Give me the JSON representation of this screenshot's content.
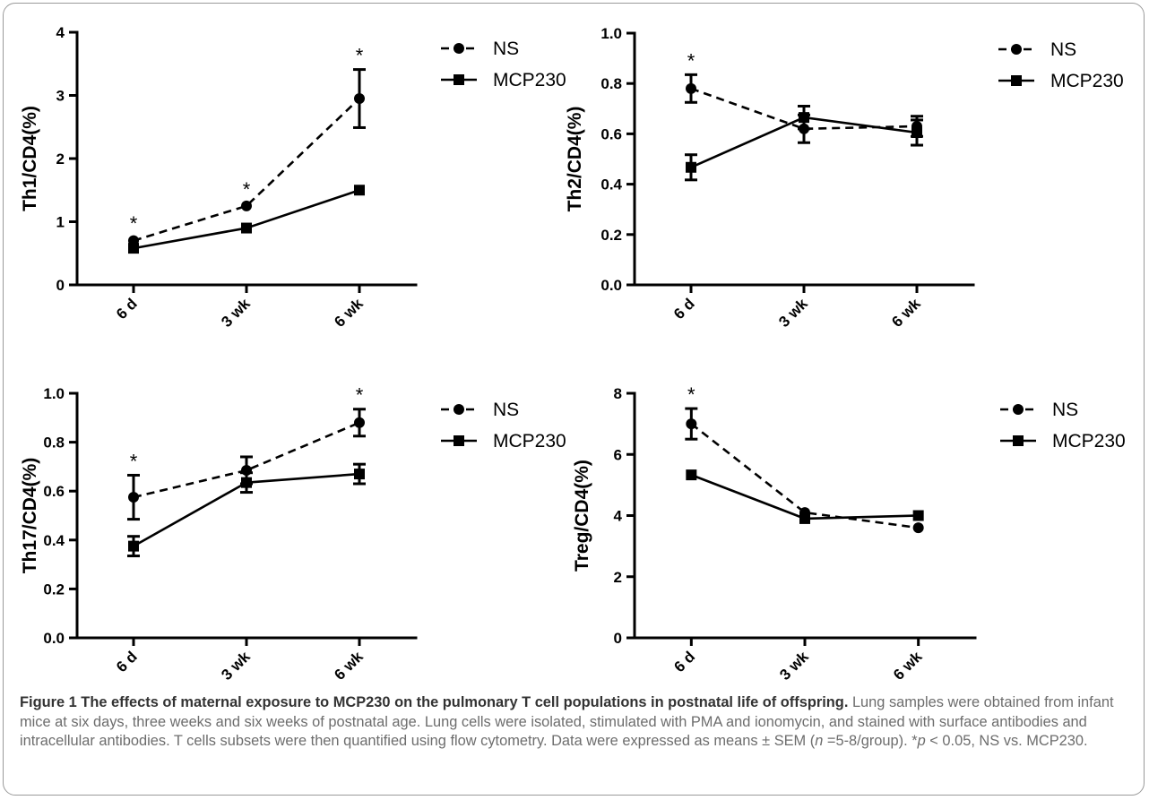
{
  "caption": {
    "title": "Figure 1 The effects of maternal exposure to MCP230 on the pulmonary T cell populations in postnatal life of offspring.",
    "body_1": "Lung samples were obtained from infant mice at six days, three weeks and six weeks of postnatal age. Lung cells were isolated, stimulated with PMA and ionomycin, and stained with surface antibodies and intracellular antibodies. T cells subsets were then quantified using flow cytometry. Data were expressed as means ± SEM (",
    "n_symbol": "n",
    "body_2": " =5-8/group). *",
    "p_symbol": "p",
    "body_3": " < 0.05, NS vs. MCP230."
  },
  "colors": {
    "ink": "#000000",
    "caption_text": "#6d6d6d",
    "caption_title": "#333333",
    "frame": "#9a9a9a"
  },
  "chart_data": [
    {
      "type": "line",
      "panel": "top-left",
      "ylabel": "Th1/CD4(%)",
      "categories": [
        "6 d",
        "3 wk",
        "6 wk"
      ],
      "ylim": [
        0,
        4
      ],
      "yticks": [
        0,
        1,
        2,
        3,
        4
      ],
      "ytick_labels": [
        "0",
        "1",
        "2",
        "3",
        "4"
      ],
      "legend": "top-right",
      "series": [
        {
          "name": "NS",
          "marker": "circle",
          "dash": true,
          "values": [
            0.7,
            1.25,
            2.95
          ],
          "errors": [
            0.05,
            0.04,
            0.46
          ]
        },
        {
          "name": "MCP230",
          "marker": "square",
          "dash": false,
          "values": [
            0.58,
            0.9,
            1.5
          ],
          "errors": [
            0.03,
            0.03,
            0.03
          ]
        }
      ],
      "significance": [
        {
          "category": "6 d",
          "label": "*"
        },
        {
          "category": "3 wk",
          "label": "*"
        },
        {
          "category": "6 wk",
          "label": "*"
        }
      ]
    },
    {
      "type": "line",
      "panel": "top-right",
      "ylabel": "Th2/CD4(%)",
      "categories": [
        "6 d",
        "3 wk",
        "6 wk"
      ],
      "ylim": [
        0,
        1
      ],
      "yticks": [
        0,
        0.2,
        0.4,
        0.6,
        0.8,
        1.0
      ],
      "ytick_labels": [
        "0.0",
        "0.2",
        "0.4",
        "0.6",
        "0.8",
        "1.0"
      ],
      "legend": "top-right",
      "series": [
        {
          "name": "NS",
          "marker": "circle",
          "dash": true,
          "values": [
            0.78,
            0.62,
            0.63
          ],
          "errors": [
            0.055,
            0.055,
            0.04
          ]
        },
        {
          "name": "MCP230",
          "marker": "square",
          "dash": false,
          "values": [
            0.467,
            0.665,
            0.605
          ],
          "errors": [
            0.05,
            0.045,
            0.05
          ]
        }
      ],
      "significance": [
        {
          "category": "6 d",
          "label": "*"
        }
      ]
    },
    {
      "type": "line",
      "panel": "bottom-left",
      "ylabel": "Th17/CD4(%)",
      "categories": [
        "6 d",
        "3 wk",
        "6 wk"
      ],
      "ylim": [
        0,
        1
      ],
      "yticks": [
        0,
        0.2,
        0.4,
        0.6,
        0.8,
        1.0
      ],
      "ytick_labels": [
        "0.0",
        "0.2",
        "0.4",
        "0.6",
        "0.8",
        "1.0"
      ],
      "legend": "top-right",
      "series": [
        {
          "name": "NS",
          "marker": "circle",
          "dash": true,
          "values": [
            0.575,
            0.685,
            0.88
          ],
          "errors": [
            0.09,
            0.055,
            0.055
          ]
        },
        {
          "name": "MCP230",
          "marker": "square",
          "dash": false,
          "values": [
            0.375,
            0.635,
            0.67
          ],
          "errors": [
            0.04,
            0.04,
            0.04
          ]
        }
      ],
      "significance": [
        {
          "category": "6 d",
          "label": "*"
        },
        {
          "category": "6 wk",
          "label": "*"
        }
      ]
    },
    {
      "type": "line",
      "panel": "bottom-right",
      "ylabel": "Treg/CD4(%)",
      "categories": [
        "6 d",
        "3 wk",
        "6 wk"
      ],
      "ylim": [
        0,
        8
      ],
      "yticks": [
        0,
        2,
        4,
        6,
        8
      ],
      "ytick_labels": [
        "0",
        "2",
        "4",
        "6",
        "8"
      ],
      "legend": "top-right",
      "series": [
        {
          "name": "NS",
          "marker": "circle",
          "dash": true,
          "values": [
            7.0,
            4.1,
            3.6
          ],
          "errors": [
            0.5,
            0.05,
            0.05
          ]
        },
        {
          "name": "MCP230",
          "marker": "square",
          "dash": false,
          "values": [
            5.33,
            3.9,
            4.0
          ],
          "errors": [
            0.05,
            0.05,
            0.05
          ]
        }
      ],
      "significance": [
        {
          "category": "6 d",
          "label": "*"
        }
      ]
    }
  ]
}
